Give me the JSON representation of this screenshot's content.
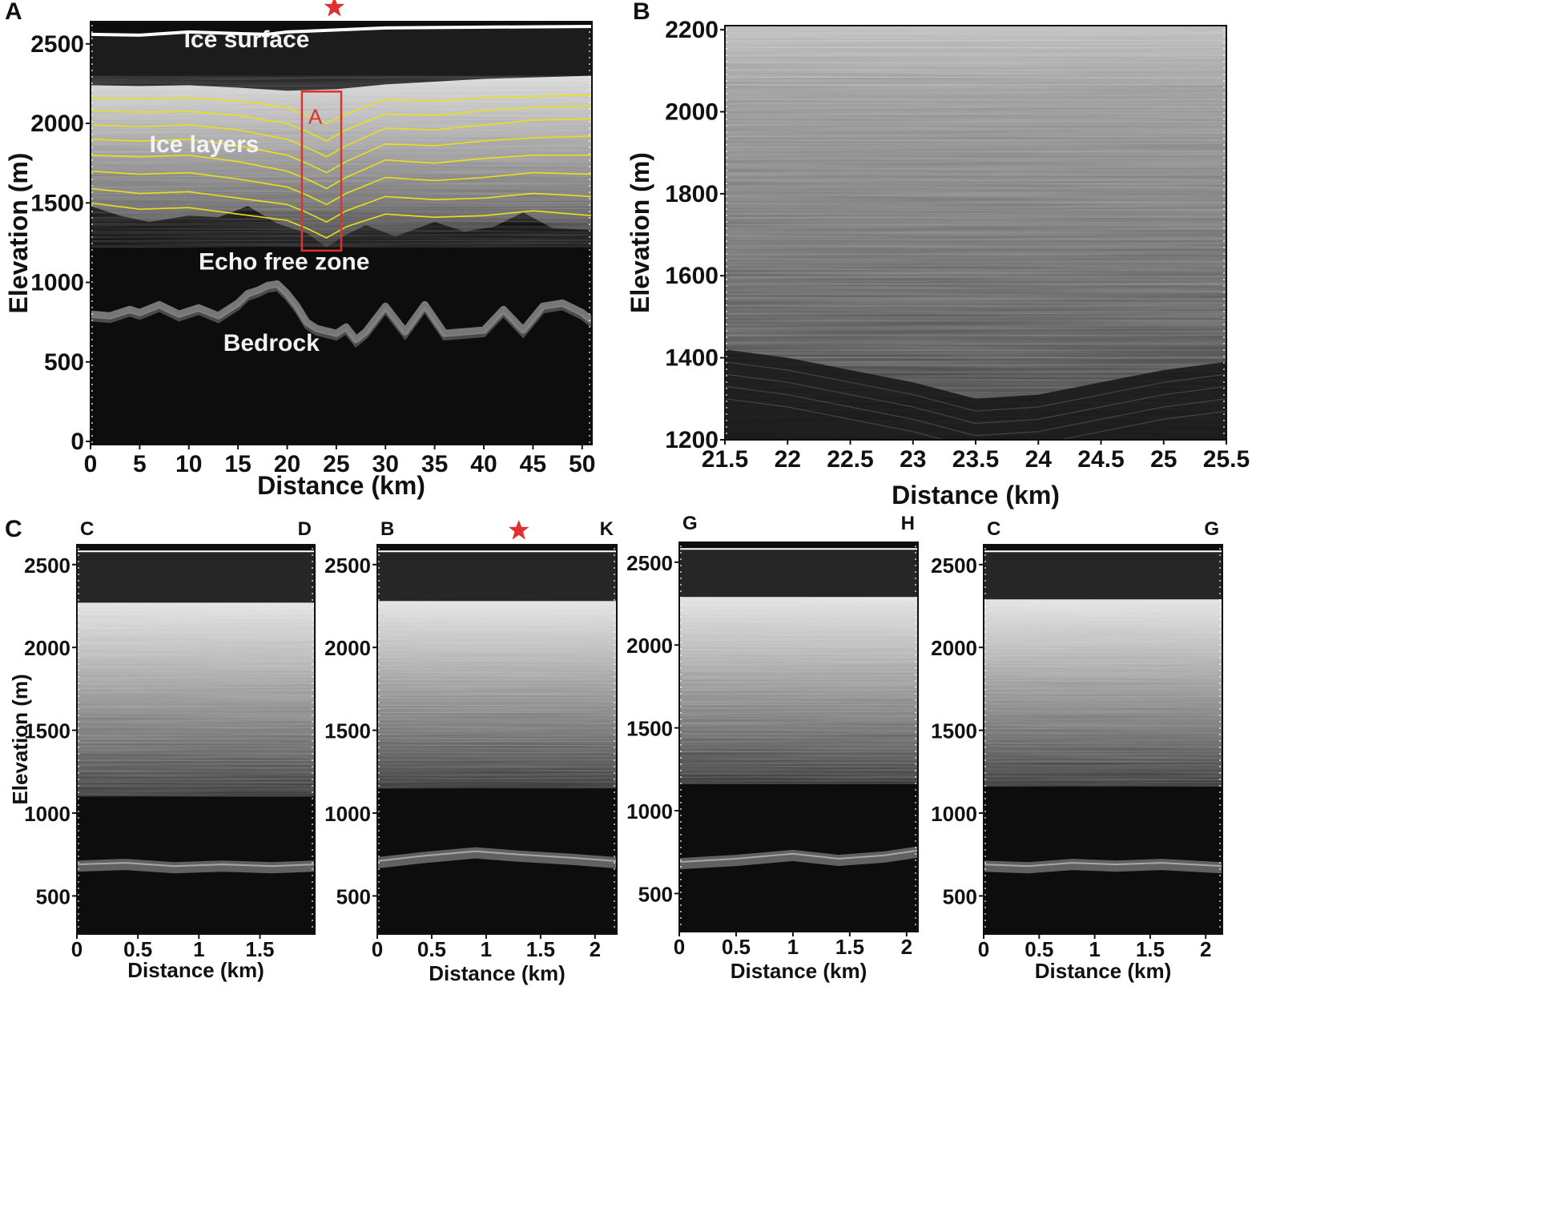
{
  "chart_data": [
    {
      "id": "A",
      "type": "heatmap",
      "panel_label": "A",
      "xlabel": "Distance (km)",
      "ylabel": "Elevation (m)",
      "xlim": [
        0,
        51
      ],
      "ylim": [
        -20,
        2640
      ],
      "x_ticks": [
        0,
        5,
        10,
        15,
        20,
        25,
        30,
        35,
        40,
        45,
        50
      ],
      "y_ticks": [
        0,
        500,
        1000,
        1500,
        2000,
        2500
      ],
      "ice_surface": {
        "x": [
          0,
          5,
          10,
          15,
          18,
          20,
          24,
          30,
          40,
          51
        ],
        "y": [
          2560,
          2555,
          2575,
          2565,
          2560,
          2575,
          2585,
          2600,
          2605,
          2610
        ]
      },
      "ice_layer_top": {
        "x": [
          0,
          5,
          10,
          15,
          20,
          25,
          30,
          40,
          51
        ],
        "y": [
          2240,
          2235,
          2240,
          2225,
          2205,
          2215,
          2245,
          2280,
          2300
        ]
      },
      "echo_free_zone_top": {
        "x": [
          0,
          3,
          6,
          10,
          13,
          16,
          19,
          22,
          24,
          26,
          28,
          31,
          35,
          38,
          41,
          44,
          47,
          51
        ],
        "y": [
          1480,
          1420,
          1380,
          1420,
          1410,
          1480,
          1370,
          1310,
          1220,
          1300,
          1360,
          1290,
          1380,
          1320,
          1350,
          1440,
          1340,
          1330
        ]
      },
      "bedrock": {
        "x": [
          0,
          2,
          4,
          5,
          7,
          9,
          11,
          13,
          15,
          16,
          17,
          18,
          19,
          20,
          21,
          22,
          23,
          25,
          26,
          27,
          28,
          30,
          32,
          34,
          36,
          38,
          40,
          42,
          44,
          46,
          48,
          50,
          51
        ],
        "y": [
          800,
          790,
          830,
          810,
          860,
          800,
          840,
          790,
          870,
          930,
          950,
          980,
          990,
          930,
          850,
          750,
          710,
          680,
          720,
          640,
          690,
          850,
          690,
          860,
          680,
          690,
          700,
          830,
          700,
          850,
          870,
          810,
          760
        ]
      },
      "traced_layers": [
        {
          "x": [
            0,
            5,
            10,
            15,
            20,
            22,
            24,
            26,
            30,
            35,
            40,
            45,
            51
          ],
          "y": [
            2160,
            2155,
            2160,
            2140,
            2100,
            2050,
            2000,
            2060,
            2150,
            2140,
            2160,
            2170,
            2180
          ]
        },
        {
          "x": [
            0,
            5,
            10,
            15,
            20,
            22,
            24,
            26,
            30,
            35,
            40,
            45,
            51
          ],
          "y": [
            2080,
            2070,
            2075,
            2050,
            2000,
            1950,
            1890,
            1960,
            2060,
            2050,
            2080,
            2100,
            2110
          ]
        },
        {
          "x": [
            0,
            5,
            10,
            15,
            20,
            22,
            24,
            26,
            30,
            35,
            40,
            45,
            51
          ],
          "y": [
            1990,
            1980,
            1990,
            1960,
            1900,
            1850,
            1790,
            1860,
            1970,
            1960,
            1990,
            2020,
            2030
          ]
        },
        {
          "x": [
            0,
            5,
            10,
            15,
            20,
            22,
            24,
            26,
            30,
            35,
            40,
            45,
            51
          ],
          "y": [
            1900,
            1890,
            1900,
            1860,
            1800,
            1750,
            1690,
            1760,
            1870,
            1860,
            1890,
            1910,
            1920
          ]
        },
        {
          "x": [
            0,
            5,
            10,
            15,
            20,
            22,
            24,
            26,
            30,
            35,
            40,
            45,
            51
          ],
          "y": [
            1800,
            1790,
            1800,
            1760,
            1700,
            1650,
            1590,
            1660,
            1770,
            1750,
            1780,
            1800,
            1800
          ]
        },
        {
          "x": [
            0,
            5,
            10,
            15,
            20,
            22,
            24,
            26,
            30,
            35,
            40,
            45,
            51
          ],
          "y": [
            1700,
            1680,
            1690,
            1650,
            1600,
            1550,
            1490,
            1560,
            1660,
            1640,
            1660,
            1690,
            1680
          ]
        },
        {
          "x": [
            0,
            5,
            10,
            15,
            20,
            22,
            24,
            26,
            30,
            35,
            40,
            45,
            51
          ],
          "y": [
            1590,
            1560,
            1570,
            1530,
            1490,
            1440,
            1380,
            1450,
            1540,
            1520,
            1530,
            1560,
            1540
          ]
        },
        {
          "x": [
            0,
            5,
            10,
            15,
            20,
            22,
            24,
            26,
            30,
            35,
            40,
            45,
            51
          ],
          "y": [
            1500,
            1460,
            1470,
            1430,
            1390,
            1340,
            1280,
            1350,
            1430,
            1410,
            1420,
            1450,
            1420
          ]
        }
      ],
      "highlight_box": {
        "label": "A",
        "x0": 21.5,
        "x1": 25.5,
        "y0": 1200,
        "y1": 2200,
        "color": "#e03030"
      },
      "star_x": 24.8,
      "annotations": [
        {
          "text": "Ice surface",
          "x": 9.5,
          "y": 2480
        },
        {
          "text": "Ice layers",
          "x": 6,
          "y": 1820
        },
        {
          "text": "Echo free zone",
          "x": 11,
          "y": 1080
        },
        {
          "text": "Bedrock",
          "x": 13.5,
          "y": 570
        }
      ]
    },
    {
      "id": "B",
      "type": "heatmap",
      "panel_label": "B",
      "xlabel": "Distance (km)",
      "ylabel": "Elevation (m)",
      "xlim": [
        21.5,
        25.5
      ],
      "ylim": [
        1200,
        2210
      ],
      "x_ticks": [
        21.5,
        22,
        22.5,
        23,
        23.5,
        24,
        24.5,
        25,
        25.5
      ],
      "y_ticks": [
        1200,
        1400,
        1600,
        1800,
        2000,
        2200
      ],
      "deep_dark_band_top": {
        "x": [
          21.5,
          22,
          22.5,
          23,
          23.5,
          24,
          24.5,
          25,
          25.5
        ],
        "y": [
          1420,
          1400,
          1370,
          1340,
          1300,
          1310,
          1340,
          1370,
          1390
        ]
      }
    },
    {
      "id": "C1",
      "type": "heatmap",
      "panel_label": "C",
      "corner_left": "C",
      "corner_right": "D",
      "xlabel": "Distance (km)",
      "ylabel": "Elevation (m)",
      "xlim": [
        0,
        1.95
      ],
      "ylim": [
        270,
        2620
      ],
      "x_ticks": [
        0,
        0.5,
        1,
        1.5
      ],
      "y_ticks": [
        500,
        1000,
        1500,
        2000,
        2500
      ],
      "ice_surface": 2580,
      "ice_top": 2270,
      "echo_free_top": 1100,
      "bedrock": {
        "x": [
          0,
          0.4,
          0.8,
          1.2,
          1.6,
          1.95
        ],
        "y": [
          680,
          690,
          670,
          680,
          670,
          680
        ]
      }
    },
    {
      "id": "C2",
      "type": "heatmap",
      "corner_left": "B",
      "corner_right": "K",
      "star_x": 1.3,
      "xlabel": "Distance (km)",
      "xlim": [
        0,
        2.2
      ],
      "ylim": [
        270,
        2620
      ],
      "x_ticks": [
        0,
        0.5,
        1,
        1.5,
        2
      ],
      "y_ticks": [
        500,
        1000,
        1500,
        2000,
        2500
      ],
      "ice_surface": 2580,
      "ice_top": 2280,
      "echo_free_top": 1150,
      "bedrock": {
        "x": [
          0,
          0.4,
          0.9,
          1.3,
          1.8,
          2.2
        ],
        "y": [
          700,
          730,
          760,
          740,
          720,
          700
        ]
      }
    },
    {
      "id": "C3",
      "type": "heatmap",
      "corner_left": "G",
      "corner_right": "H",
      "xlabel": "Distance (km)",
      "xlim": [
        0,
        2.1
      ],
      "ylim": [
        270,
        2620
      ],
      "x_ticks": [
        0,
        0.5,
        1,
        1.5,
        2
      ],
      "y_ticks": [
        500,
        1000,
        1500,
        2000,
        2500
      ],
      "ice_surface": 2580,
      "ice_top": 2290,
      "echo_free_top": 1160,
      "bedrock": {
        "x": [
          0,
          0.5,
          1,
          1.4,
          1.8,
          2.1
        ],
        "y": [
          680,
          700,
          730,
          700,
          720,
          750
        ]
      }
    },
    {
      "id": "C4",
      "type": "heatmap",
      "corner_left": "C",
      "corner_right": "G",
      "xlabel": "Distance (km)",
      "xlim": [
        0,
        2.15
      ],
      "ylim": [
        270,
        2620
      ],
      "x_ticks": [
        0,
        0.5,
        1,
        1.5,
        2
      ],
      "y_ticks": [
        500,
        1000,
        1500,
        2000,
        2500
      ],
      "ice_surface": 2580,
      "ice_top": 2290,
      "echo_free_top": 1160,
      "bedrock": {
        "x": [
          0,
          0.4,
          0.8,
          1.2,
          1.6,
          2.15
        ],
        "y": [
          680,
          670,
          690,
          680,
          690,
          670
        ]
      }
    }
  ],
  "colors": {
    "background": "#0d0d0d",
    "air": "#1c1c1c",
    "ice_bright": "#e8e8e8",
    "traced_layer": "#e6e21a",
    "surface_line": "#ffffff",
    "box": "#e03030",
    "star": "#e03030"
  }
}
